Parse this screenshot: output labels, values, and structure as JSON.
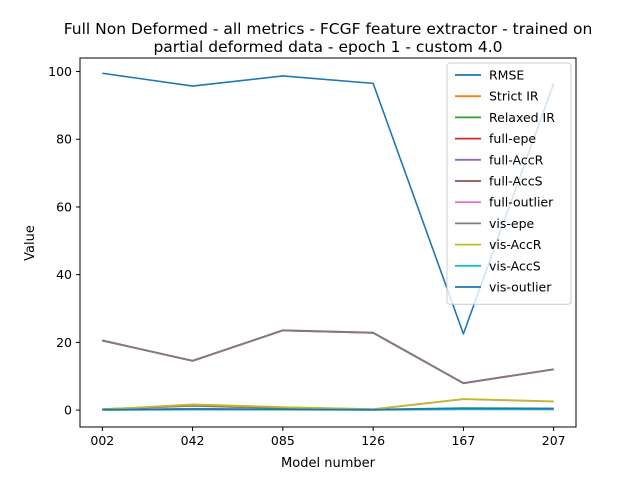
{
  "chart_data": {
    "type": "line",
    "title": [
      "Full Non Deformed - all metrics - FCGF feature extractor -  trained on",
      "partial deformed data -  epoch 1 - custom 4.0"
    ],
    "xlabel": "Model number",
    "ylabel": "Value",
    "categories": [
      "002",
      "042",
      "085",
      "126",
      "167",
      "207"
    ],
    "ylim": [
      -5,
      104
    ],
    "yticks": [
      0,
      20,
      40,
      60,
      80,
      100
    ],
    "grid": false,
    "legend_position": "top-right",
    "series": [
      {
        "name": "RMSE",
        "color": "#1f77b4",
        "values": [
          99.5,
          95.7,
          98.7,
          96.5,
          22.5,
          96.5
        ]
      },
      {
        "name": "Strict IR",
        "color": "#ff7f0e",
        "values": [
          0.2,
          1.2,
          0.5,
          0.1,
          0.3,
          0.2
        ]
      },
      {
        "name": "Relaxed IR",
        "color": "#2ca02c",
        "values": [
          0.3,
          1.3,
          0.6,
          0.2,
          0.6,
          0.5
        ]
      },
      {
        "name": "full-epe",
        "color": "#d62728",
        "values": [
          20.5,
          14.5,
          23.5,
          22.8,
          7.9,
          12.0
        ]
      },
      {
        "name": "full-AccR",
        "color": "#9467bd",
        "values": [
          0.1,
          0.4,
          0.2,
          0.1,
          0.3,
          0.3
        ]
      },
      {
        "name": "full-AccS",
        "color": "#8c564b",
        "values": [
          20.6,
          14.6,
          23.6,
          22.9,
          8.0,
          12.1
        ]
      },
      {
        "name": "full-outlier",
        "color": "#e377c2",
        "values": [
          0.2,
          1.5,
          0.8,
          0.2,
          3.2,
          2.5
        ]
      },
      {
        "name": "vis-epe",
        "color": "#7f7f7f",
        "values": [
          20.5,
          14.5,
          23.5,
          22.8,
          7.9,
          12.0
        ]
      },
      {
        "name": "vis-AccR",
        "color": "#bcbd22",
        "values": [
          0.2,
          1.7,
          0.9,
          0.3,
          3.3,
          2.6
        ]
      },
      {
        "name": "vis-AccS",
        "color": "#17becf",
        "values": [
          0.0,
          0.1,
          0.1,
          0.0,
          0.2,
          0.2
        ]
      },
      {
        "name": "vis-outlier",
        "color": "#1f77b4",
        "values": [
          0.1,
          0.3,
          0.2,
          0.1,
          0.5,
          0.4
        ]
      }
    ]
  }
}
